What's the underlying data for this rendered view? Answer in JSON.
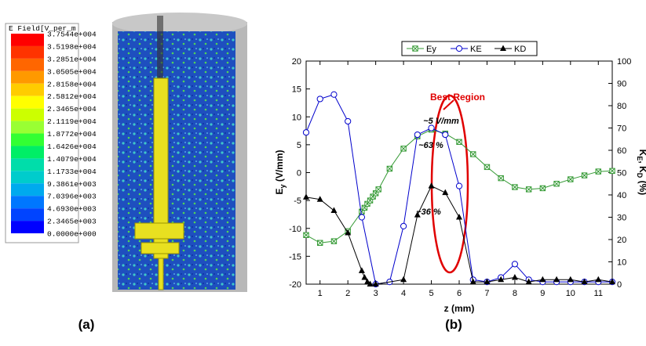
{
  "field_legend": {
    "title": "E Field[V_per_m",
    "labels": [
      "3.7544e+004",
      "3.5198e+004",
      "3.2851e+004",
      "3.0505e+004",
      "2.8158e+004",
      "2.5812e+004",
      "2.3465e+004",
      "2.1119e+004",
      "1.8772e+004",
      "1.6426e+004",
      "1.4079e+004",
      "1.1733e+004",
      "9.3861e+003",
      "7.0396e+003",
      "4.6930e+003",
      "2.3465e+003",
      "0.0000e+000"
    ],
    "colors": [
      "#ff0000",
      "#ff3300",
      "#ff6600",
      "#ff9900",
      "#ffcc00",
      "#ffff00",
      "#ccff00",
      "#99ff33",
      "#33ff33",
      "#00ee66",
      "#00ddaa",
      "#00cccc",
      "#00aaee",
      "#0077ff",
      "#0044ff",
      "#0000ff"
    ]
  },
  "panel_labels": [
    "(a)",
    "(b)"
  ],
  "chart_data": {
    "type": "line",
    "xlabel": "z (mm)",
    "ylabel": [
      "E",
      "y",
      " (V/mm)"
    ],
    "y2label": [
      "K",
      "E",
      ", K",
      "D",
      " (%)"
    ],
    "xlim": [
      0.5,
      11.5
    ],
    "xticks": [
      1,
      2,
      3,
      4,
      5,
      6,
      7,
      8,
      9,
      10,
      11
    ],
    "ylim": [
      -20,
      20
    ],
    "yticks": [
      -20,
      -15,
      -10,
      -5,
      0,
      5,
      10,
      15,
      20
    ],
    "y2lim": [
      0,
      100
    ],
    "y2ticks": [
      0,
      10,
      20,
      30,
      40,
      50,
      60,
      70,
      80,
      90,
      100
    ],
    "annotations": [
      "Best Region",
      "~5 V/mm",
      "~63 %",
      "~36 %"
    ],
    "series": [
      {
        "name": "Ey",
        "color": "#339933",
        "marker": "square-x",
        "x": [
          0.5,
          1,
          1.5,
          2,
          2.5,
          2.6,
          2.7,
          2.8,
          2.9,
          3,
          3.1,
          3.5,
          4,
          4.5,
          5,
          5.5,
          6,
          6.5,
          7,
          7.5,
          8,
          8.5,
          9,
          9.5,
          10,
          10.5,
          11,
          11.5
        ],
        "values": [
          -11.2,
          -12.6,
          -12.3,
          -10.5,
          -7,
          -6.3,
          -5.6,
          -5,
          -4.3,
          -3.7,
          -3,
          0.7,
          4.3,
          6.5,
          7.7,
          7,
          5.5,
          3.3,
          1,
          -1,
          -2.6,
          -3,
          -2.8,
          -2,
          -1.2,
          -0.5,
          0.2,
          0.3
        ]
      },
      {
        "name": "KE",
        "color": "#0000cc",
        "marker": "circle",
        "axis": "y2",
        "x": [
          0.5,
          1,
          1.5,
          2,
          2.5,
          3,
          3.5,
          4,
          4.5,
          5,
          5.5,
          6,
          6.5,
          7,
          7.5,
          8,
          8.5,
          9,
          9.5,
          10,
          10.5,
          11,
          11.5
        ],
        "values": [
          68,
          83,
          85,
          73,
          30,
          0,
          1,
          26,
          67,
          70,
          67,
          44,
          2,
          1,
          3,
          9,
          2,
          1,
          1,
          1,
          1,
          1,
          1
        ]
      },
      {
        "name": "KD",
        "color": "#000000",
        "marker": "triangle",
        "axis": "y2",
        "x": [
          0.5,
          1,
          1.5,
          2,
          2.5,
          2.6,
          2.7,
          2.8,
          3,
          4,
          4.5,
          5,
          5.5,
          6,
          6.5,
          7,
          7.5,
          8,
          8.5,
          9,
          9.5,
          10,
          10.5,
          11,
          11.5
        ],
        "values": [
          39,
          38,
          33,
          23,
          6,
          3,
          1,
          0,
          0,
          2,
          31,
          44,
          41,
          30,
          1,
          1,
          2,
          3,
          1,
          2,
          2,
          2,
          1,
          2,
          1
        ]
      }
    ]
  }
}
